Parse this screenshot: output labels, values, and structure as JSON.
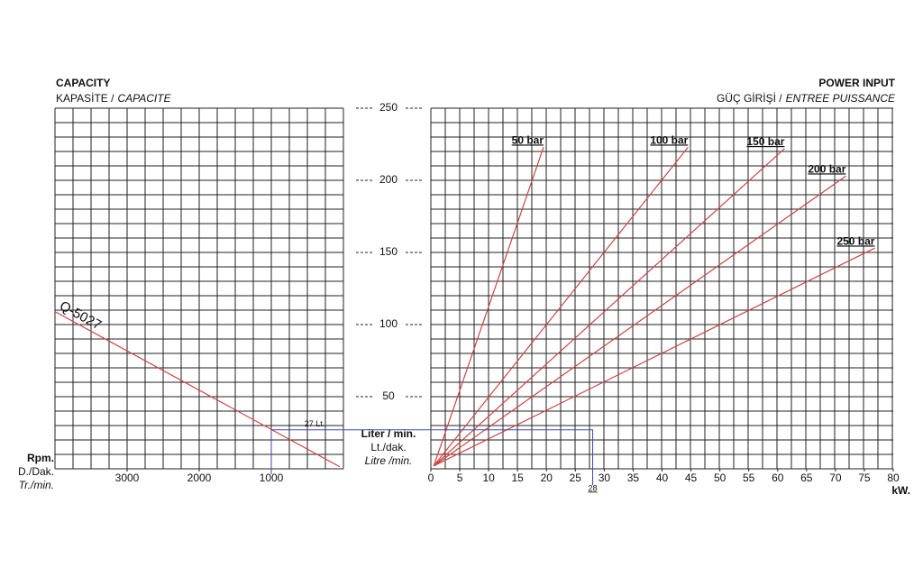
{
  "chart_data": [
    {
      "type": "line",
      "title": "CAPACITY",
      "subtitle": [
        "KAPASİTE /",
        "CAPACITE"
      ],
      "x_label": [
        "Rpm.",
        "D./Dak.",
        "Tr./min."
      ],
      "y_label": [
        "Liter / min.",
        "Lt./dak.",
        "Litre /min."
      ],
      "xlim": [
        4000,
        0
      ],
      "xticks": [
        3000,
        2000,
        1000
      ],
      "ylim": [
        0,
        250
      ],
      "yticks": [
        50,
        100,
        150,
        200,
        250
      ],
      "grid": true,
      "series": [
        {
          "name": "Q-5027",
          "color": "#d0433f",
          "x": [
            4000,
            50
          ],
          "values": [
            109,
            1.4
          ]
        }
      ],
      "annotation": {
        "rpm": 1000,
        "flow": 27,
        "flow_label": "27 Lt.",
        "power": 28
      }
    },
    {
      "type": "line",
      "title": "POWER INPUT",
      "subtitle": [
        "GÜÇ GİRİŞİ /",
        "ENTREE PUISSANCE"
      ],
      "x_label": "kW.",
      "xlim": [
        0,
        80
      ],
      "xticks": [
        0,
        5,
        10,
        15,
        20,
        25,
        30,
        35,
        40,
        45,
        50,
        55,
        60,
        65,
        70,
        75,
        80
      ],
      "ylim": [
        0,
        250
      ],
      "grid": true,
      "series": [
        {
          "name": "50 bar",
          "color": "#d0433f",
          "x": [
            0.5,
            19.5
          ],
          "values": [
            2,
            223
          ]
        },
        {
          "name": "100 bar",
          "color": "#d0433f",
          "x": [
            0.5,
            44.5
          ],
          "values": [
            2,
            223
          ]
        },
        {
          "name": "150 bar",
          "color": "#d0433f",
          "x": [
            0.5,
            61.2
          ],
          "values": [
            2,
            222
          ]
        },
        {
          "name": "200 bar",
          "color": "#d0433f",
          "x": [
            0.5,
            71.8
          ],
          "values": [
            2,
            203
          ]
        },
        {
          "name": "250 bar",
          "color": "#d0433f",
          "x": [
            0.5,
            76.8
          ],
          "values": [
            2,
            153
          ]
        }
      ]
    }
  ]
}
